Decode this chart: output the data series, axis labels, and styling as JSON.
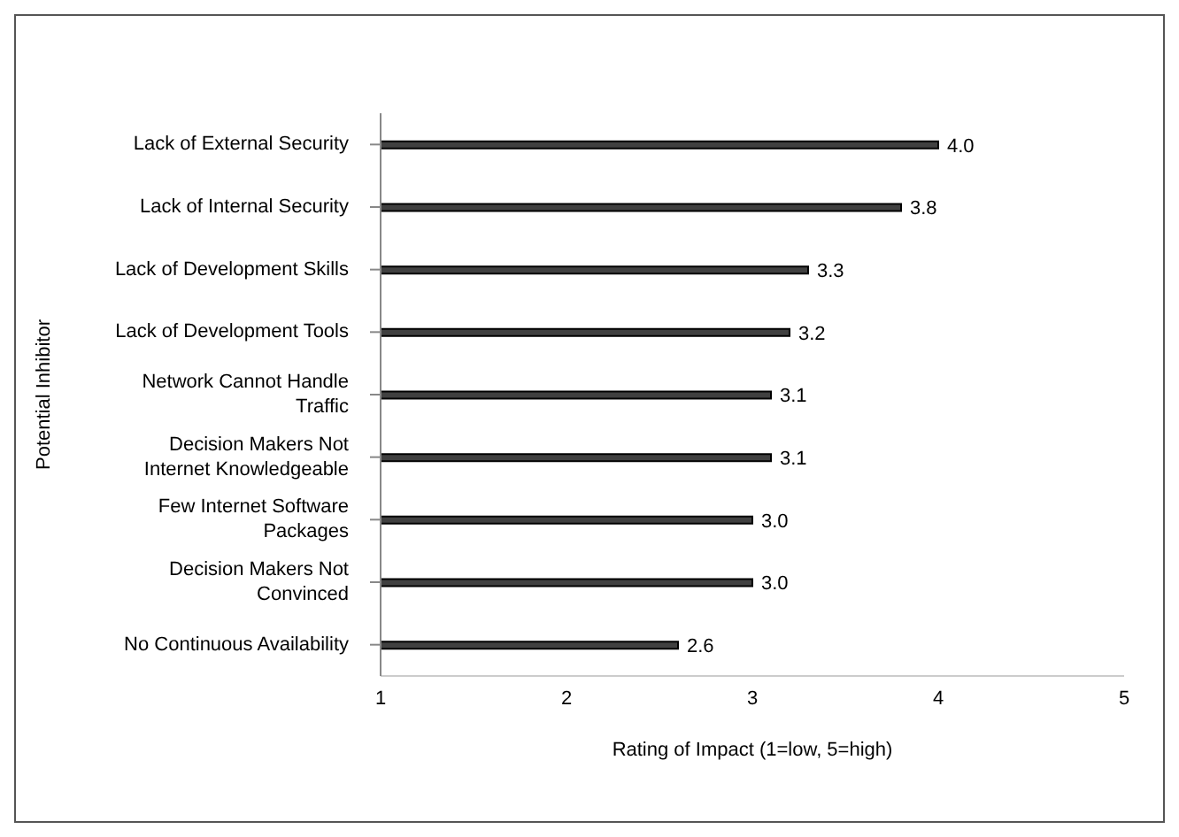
{
  "chart_data": {
    "type": "bar",
    "orientation": "horizontal",
    "xlabel": "Rating of Impact (1=low, 5=high)",
    "ylabel": "Potential Inhibitor",
    "categories": [
      "Lack of External Security",
      "Lack of Internal Security",
      "Lack of Development Skills",
      "Lack of Development Tools",
      "Network Cannot Handle Traffic",
      "Decision Makers Not Internet Knowledgeable",
      "Few Internet Software Packages",
      "Decision Makers Not Convinced",
      "No Continuous Availability"
    ],
    "values": [
      4.0,
      3.8,
      3.3,
      3.2,
      3.1,
      3.1,
      3.0,
      3.0,
      2.6
    ],
    "value_labels": [
      "4.0",
      "3.8",
      "3.3",
      "3.2",
      "3.1",
      "3.1",
      "3.0",
      "3.0",
      "2.6"
    ],
    "color": "#404040",
    "xlim": [
      1,
      5
    ],
    "xticks": [
      1,
      2,
      3,
      4,
      5
    ],
    "grid": false,
    "legend": false
  }
}
